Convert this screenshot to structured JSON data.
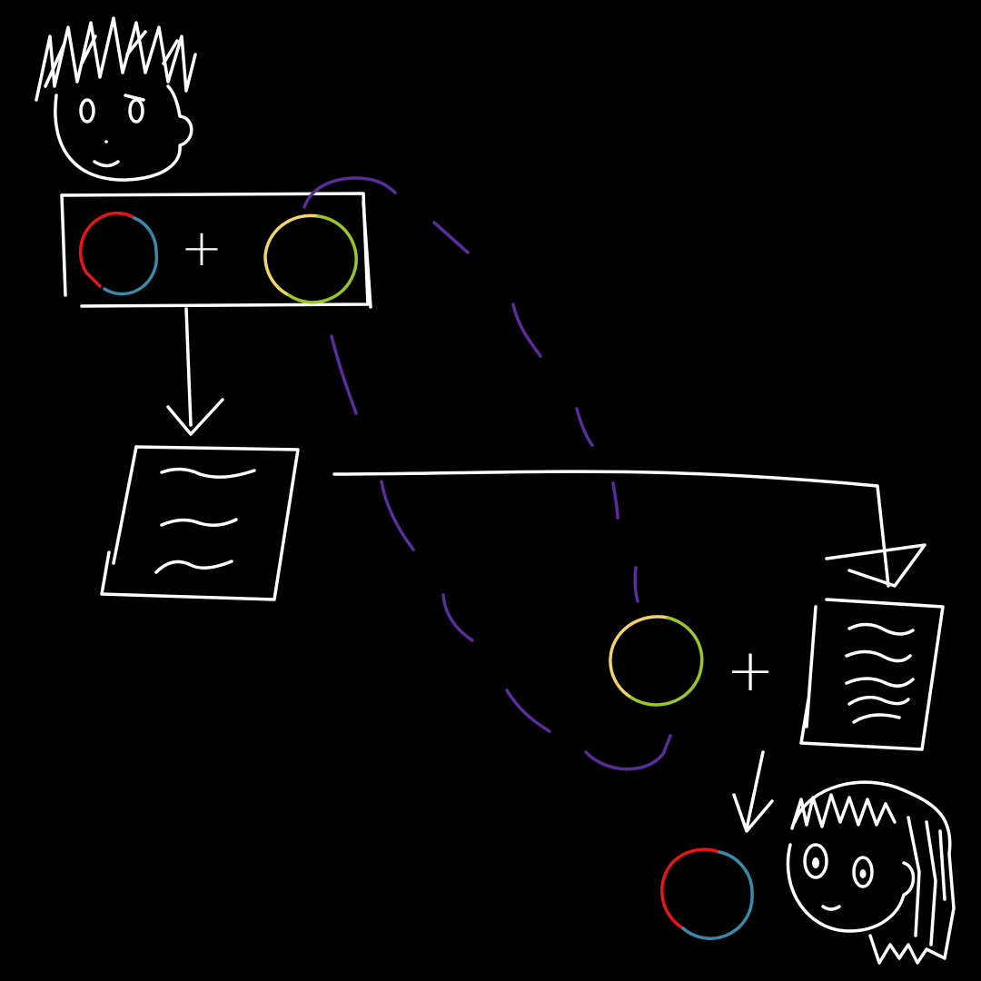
{
  "diagram": {
    "operator_top": "+",
    "operator_bottom": "+",
    "colors": {
      "background": "#000000",
      "line": "#ffffff",
      "dashed_path": "#5b2c9c",
      "red": "#e8141c",
      "blue": "#3d87a8",
      "yellow": "#f2d36b",
      "green": "#9bc62b"
    }
  }
}
